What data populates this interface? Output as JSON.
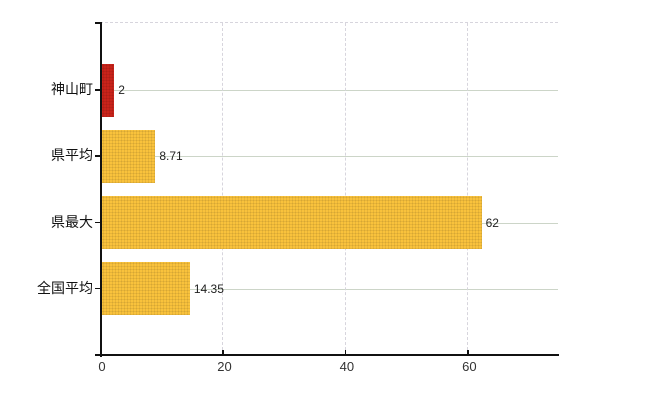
{
  "chart_data": {
    "type": "bar",
    "orientation": "horizontal",
    "title": "",
    "categories": [
      "神山町",
      "県平均",
      "県最大",
      "全国平均"
    ],
    "values": [
      2,
      8.71,
      62,
      14.35
    ],
    "value_labels": [
      "2",
      "8.71",
      "62",
      "14.35"
    ],
    "bar_colors": [
      "#c9231a",
      "#f9c23c",
      "#f9c23c",
      "#f9c23c"
    ],
    "x_ticks": [
      0,
      20,
      40,
      60
    ],
    "x_tick_labels": [
      "0",
      "20",
      "40",
      "60"
    ],
    "xlim": [
      0,
      74.8
    ],
    "ylabel": "",
    "xlabel": "",
    "legend": "none",
    "grid": {
      "vertical": "dashed",
      "horizontal": "solid"
    }
  },
  "colors": {
    "bar_red": "#c9231a",
    "bar_yellow": "#f9c23c",
    "axis": "#111111",
    "grid_vertical": "#d7d5dd",
    "grid_horizontal": "#ccd5c8",
    "category_text": "#111111",
    "value_text": "#222222",
    "tick_text": "#333333",
    "background": "#ffffff"
  }
}
